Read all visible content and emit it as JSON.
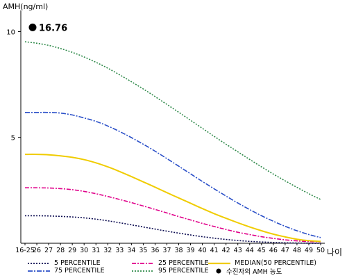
{
  "chart_data": {
    "type": "line",
    "title": "",
    "ylabel": "AMH(ng/ml)",
    "xlabel": "나이",
    "ylim": [
      0,
      11
    ],
    "yticks": [
      {
        "value": 10,
        "label": "10"
      },
      {
        "value": 5,
        "label": "5"
      }
    ],
    "categories": [
      "16-25",
      "26",
      "27",
      "28",
      "29",
      "30",
      "31",
      "32",
      "33",
      "34",
      "35",
      "36",
      "37",
      "38",
      "39",
      "40",
      "41",
      "42",
      "43",
      "44",
      "45",
      "46",
      "47",
      "48",
      "49",
      "50"
    ],
    "series": [
      {
        "name": "5 PERCENTILE",
        "color": "#0a0a50",
        "dash": "2 2",
        "values": [
          1.3,
          1.3,
          1.29,
          1.27,
          1.24,
          1.2,
          1.14,
          1.06,
          0.97,
          0.87,
          0.77,
          0.67,
          0.57,
          0.48,
          0.39,
          0.31,
          0.24,
          0.18,
          0.13,
          0.09,
          0.06,
          0.04,
          0.02,
          0.01,
          0,
          0
        ]
      },
      {
        "name": "25 PERCENTILE",
        "color": "#e0008a",
        "dash": "6 2 2 2",
        "values": [
          2.62,
          2.62,
          2.61,
          2.58,
          2.53,
          2.45,
          2.34,
          2.21,
          2.07,
          1.92,
          1.76,
          1.6,
          1.43,
          1.26,
          1.1,
          0.94,
          0.79,
          0.65,
          0.52,
          0.41,
          0.31,
          0.23,
          0.16,
          0.11,
          0.08,
          0.07
        ]
      },
      {
        "name": "MEDIAN(50 PERCENTILE)",
        "color": "#f0cc00",
        "dash": "",
        "values": [
          4.2,
          4.2,
          4.18,
          4.13,
          4.06,
          3.95,
          3.8,
          3.61,
          3.39,
          3.15,
          2.9,
          2.65,
          2.39,
          2.14,
          1.89,
          1.64,
          1.4,
          1.18,
          0.97,
          0.77,
          0.59,
          0.43,
          0.3,
          0.19,
          0.12,
          0.09
        ]
      },
      {
        "name": "75 PERCENTILE",
        "color": "#2a4fc8",
        "dash": "7 2 2 2",
        "values": [
          6.18,
          6.18,
          6.18,
          6.15,
          6.06,
          5.92,
          5.76,
          5.54,
          5.28,
          4.99,
          4.68,
          4.35,
          4,
          3.64,
          3.28,
          2.92,
          2.57,
          2.23,
          1.9,
          1.59,
          1.3,
          1.04,
          0.8,
          0.59,
          0.41,
          0.27
        ]
      },
      {
        "name": "95 PERCENTILE",
        "color": "#2f8a4a",
        "dash": "2 2",
        "values": [
          9.52,
          9.45,
          9.35,
          9.2,
          9.02,
          8.8,
          8.55,
          8.27,
          7.96,
          7.63,
          7.29,
          6.93,
          6.56,
          6.19,
          5.81,
          5.43,
          5.05,
          4.68,
          4.32,
          3.96,
          3.61,
          3.27,
          2.95,
          2.64,
          2.34,
          2.07
        ]
      }
    ],
    "patient": {
      "name": "수진자의 AMH 농도",
      "label": "16.76",
      "value": 16.76,
      "color": "#000000"
    },
    "legend": [
      {
        "name": "5 PERCENTILE",
        "color": "#0a0a50",
        "dash": "2 2"
      },
      {
        "name": "25 PERCENTILE",
        "color": "#e0008a",
        "dash": "6 2 2 2"
      },
      {
        "name": "MEDIAN(50 PERCENTILE)",
        "color": "#f0cc00",
        "dash": ""
      },
      {
        "name": "75 PERCENTILE",
        "color": "#2a4fc8",
        "dash": "7 2 2 2"
      },
      {
        "name": "95 PERCENTILE",
        "color": "#2f8a4a",
        "dash": "2 2"
      },
      {
        "name": "수진자의 AMH 농도",
        "color": "#000000",
        "dash": "dot"
      }
    ],
    "legend_position": "bottom",
    "grid": false
  }
}
